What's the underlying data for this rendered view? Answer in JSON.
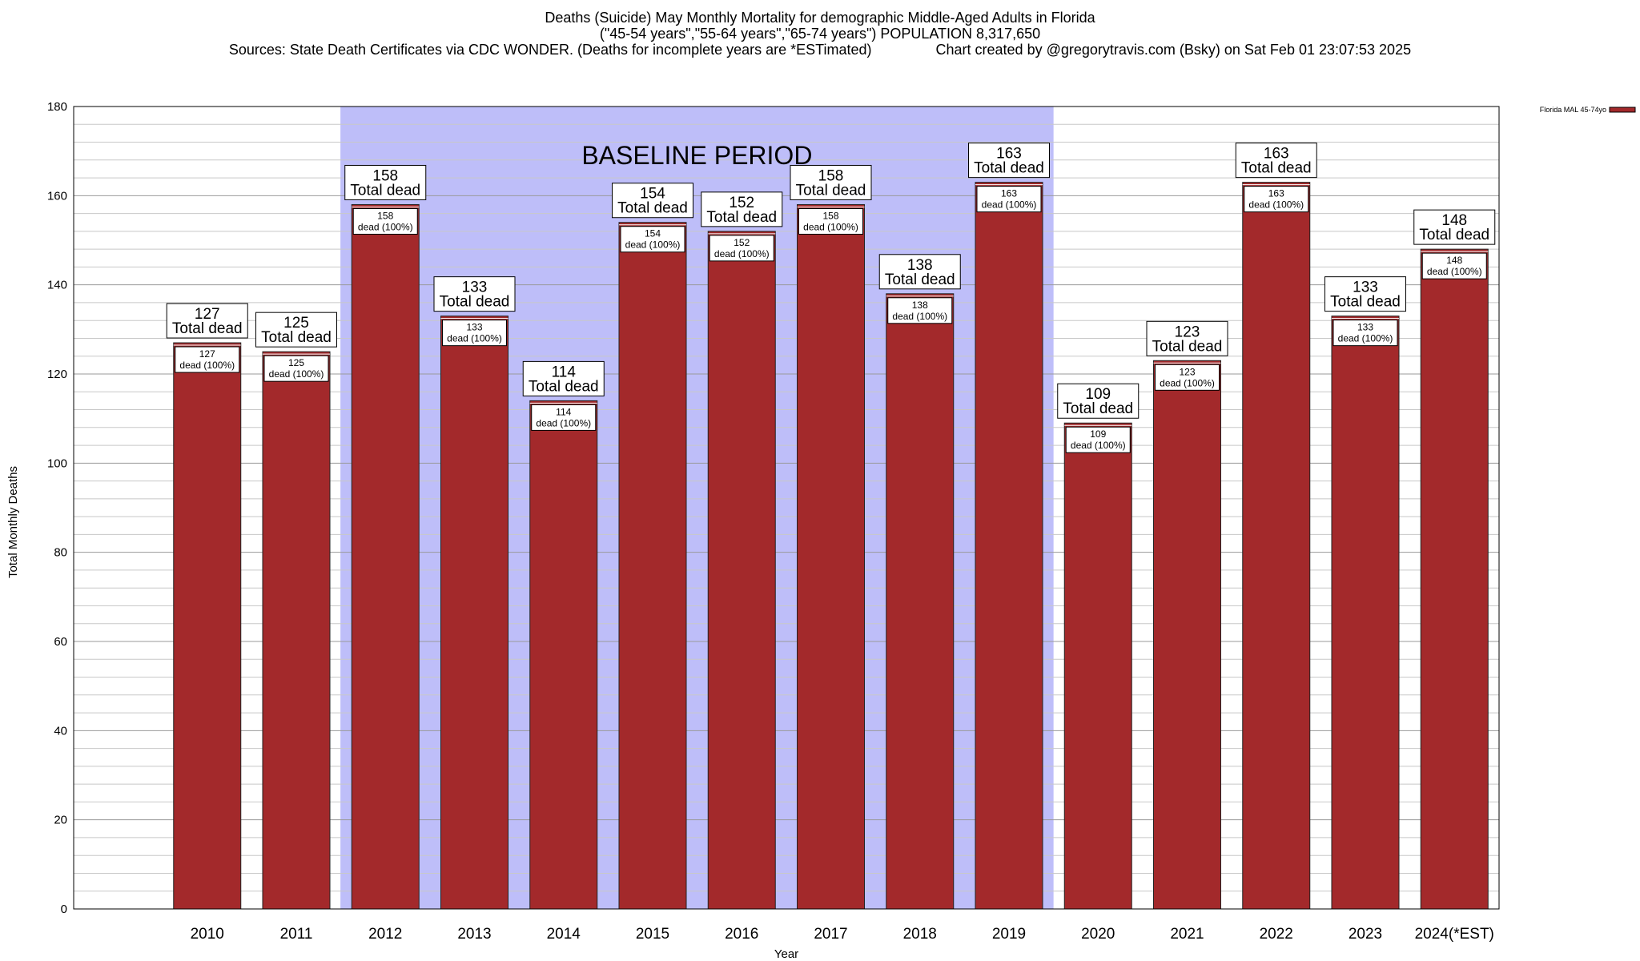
{
  "header": {
    "title_line1": "Deaths (Suicide) May Monthly Mortality for demographic Middle-Aged Adults in Florida",
    "title_line2": "(\"45-54 years\",\"55-64 years\",\"65-74 years\") POPULATION 8,317,650",
    "title_line3": "Sources: State Death Certificates via CDC WONDER. (Deaths for incomplete years are *ESTimated)                Chart created by @gregorytravis.com (Bsky) on Sat Feb 01 23:07:53 2025"
  },
  "chart_data": {
    "type": "bar",
    "xlabel": "Year",
    "ylabel": "Total Monthly Deaths",
    "ylim": [
      0,
      180
    ],
    "y_ticks": [
      0,
      20,
      40,
      60,
      80,
      100,
      120,
      140,
      160,
      180
    ],
    "grid": true,
    "legend_position": "top-right",
    "categories": [
      "2010",
      "2011",
      "2012",
      "2013",
      "2014",
      "2015",
      "2016",
      "2017",
      "2018",
      "2019",
      "2020",
      "2021",
      "2022",
      "2023",
      "2024(*EST)"
    ],
    "series": [
      {
        "name": "Florida MAL 45-74yo",
        "color": "#a3292b",
        "values": [
          127,
          125,
          158,
          133,
          114,
          154,
          152,
          158,
          138,
          163,
          109,
          123,
          163,
          133,
          148
        ]
      }
    ],
    "top_label_suffix": "Total dead",
    "inner_label_suffix": "dead (100%)",
    "baseline": {
      "label": "BASELINE PERIOD",
      "from": "2012",
      "to": "2019",
      "color": "#bebef9"
    }
  }
}
